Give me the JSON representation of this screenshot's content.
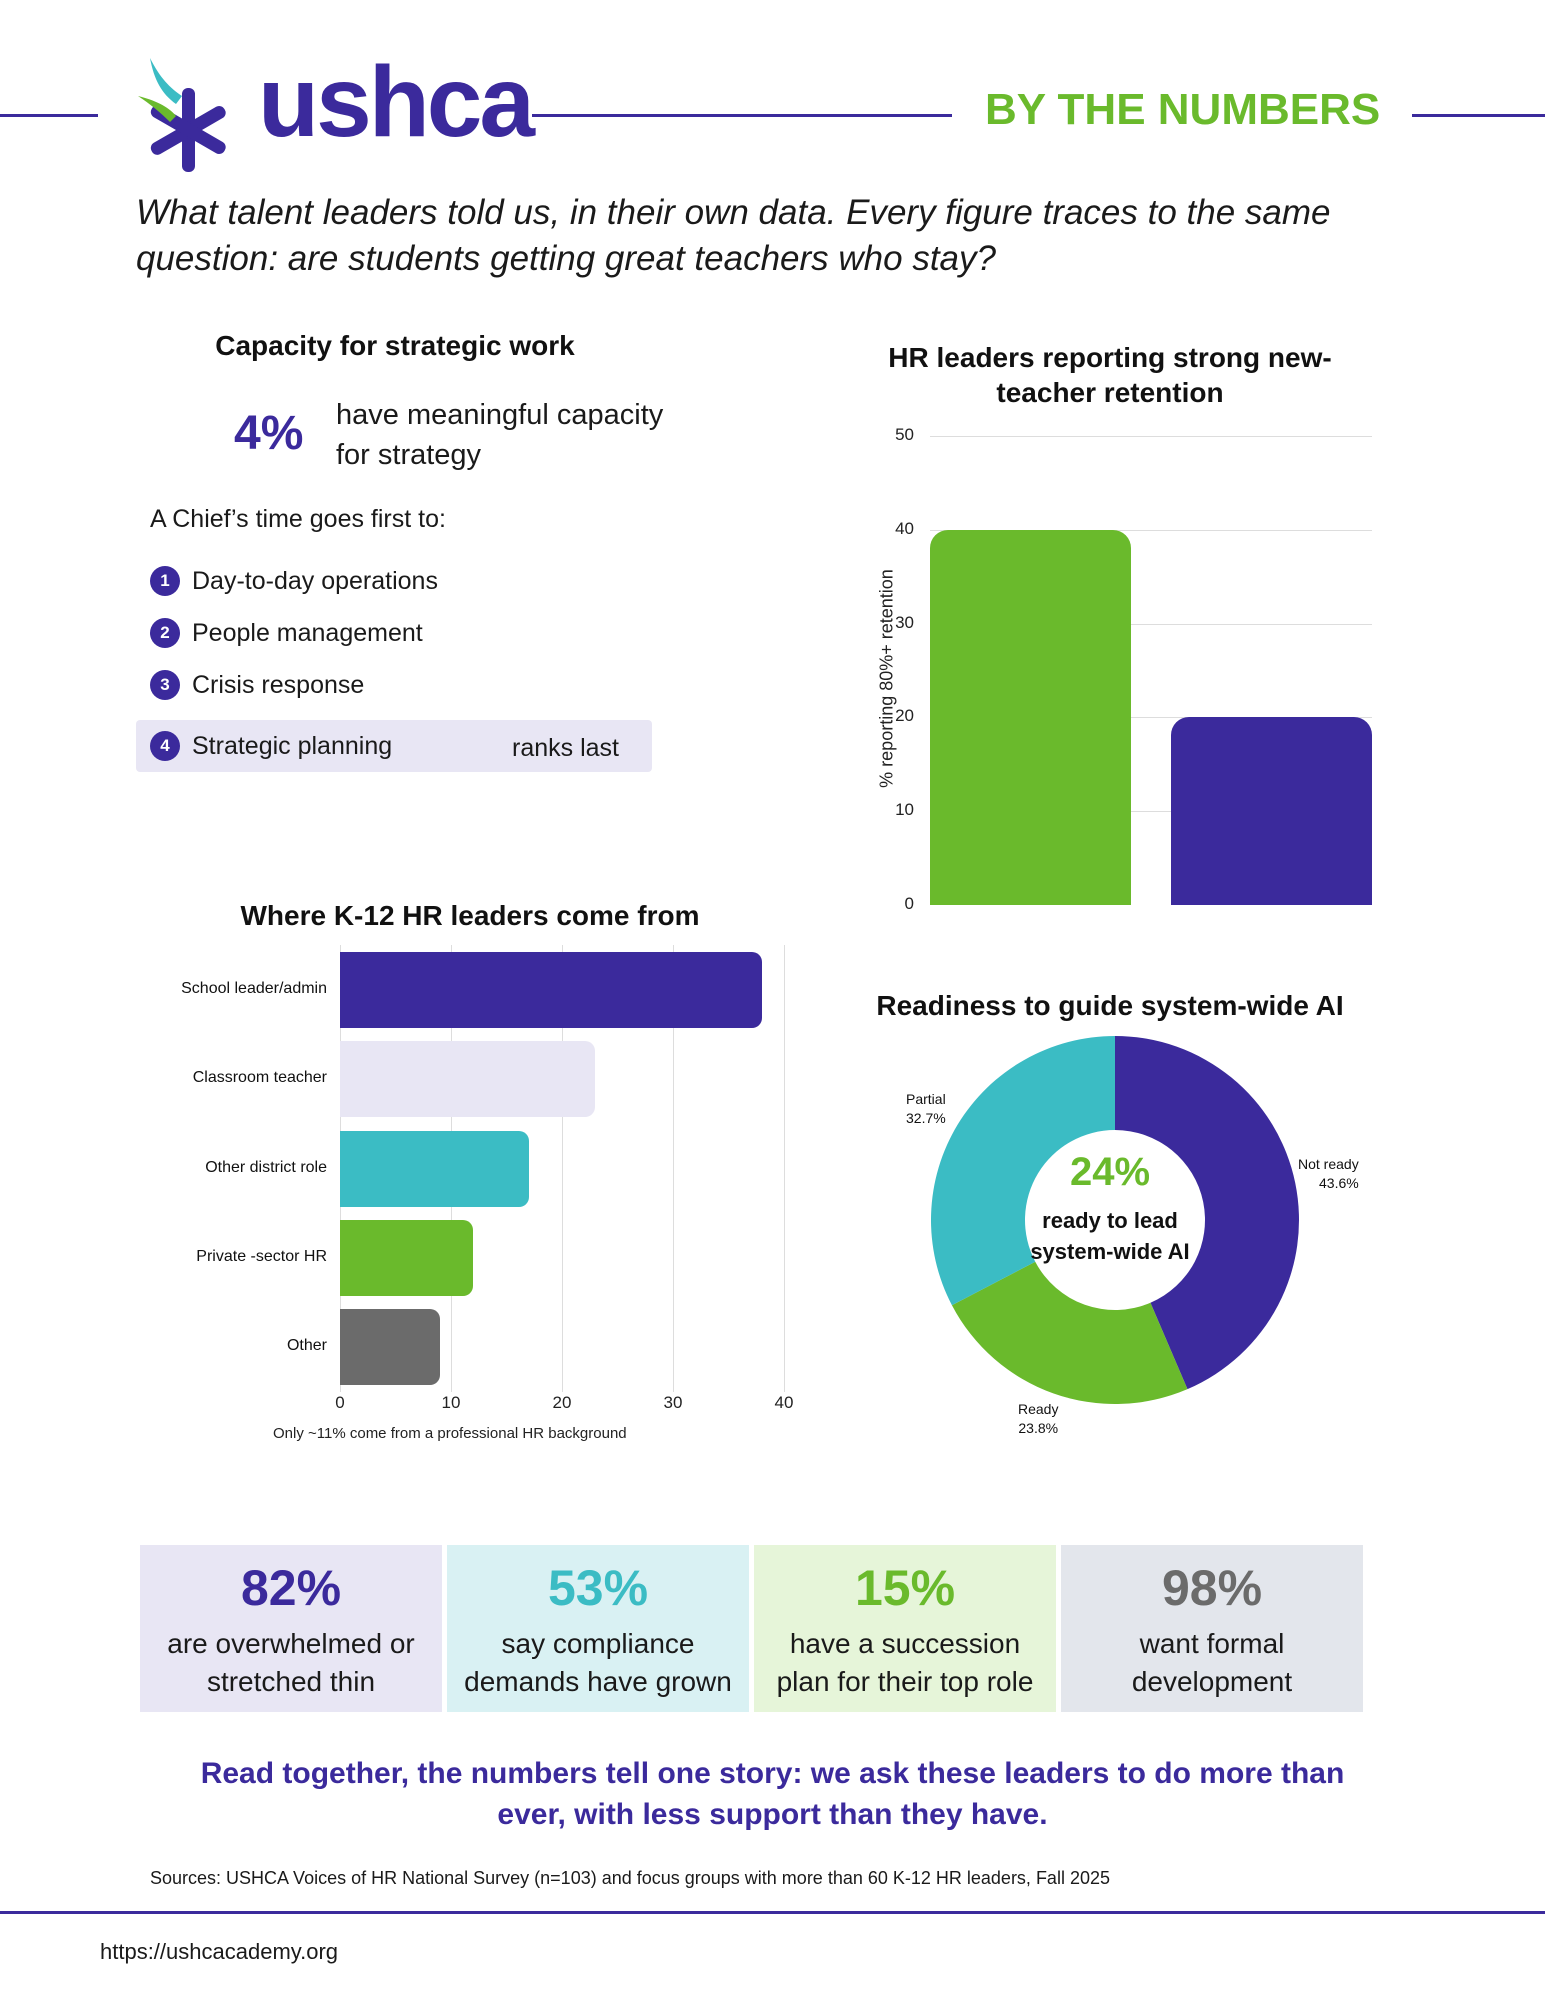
{
  "header": {
    "brand": "ushca",
    "tagline": "BY THE NUMBERS",
    "intro": "What talent leaders told us, in their own data. Every figure traces to the same question: are students getting great teachers who stay?"
  },
  "capacity": {
    "title": "Capacity for strategic work",
    "stat": "4%",
    "stat_desc": "have meaningful capacity for strategy",
    "chief_intro": "A Chief’s time goes first to:",
    "ranks": [
      {
        "num": "1",
        "label": "Day-to-day operations"
      },
      {
        "num": "2",
        "label": "People management"
      },
      {
        "num": "3",
        "label": "Crisis response"
      },
      {
        "num": "4",
        "label": "Strategic planning"
      }
    ],
    "last_note": "ranks last"
  },
  "chart_data": [
    {
      "type": "bar",
      "title": "HR leaders reporting strong new-teacher retention",
      "title_lines": [
        "HR leaders reporting strong new-",
        "teacher retention"
      ],
      "ylabel": "% reporting 80%+ retention",
      "ylim": [
        0,
        50
      ],
      "yticks": [
        "0",
        "10",
        "20",
        "30",
        "40",
        "50"
      ],
      "categories": [
        "",
        ""
      ],
      "values": [
        40,
        20
      ],
      "colors": [
        "#6aba2c",
        "#3b2a9c"
      ],
      "grid": true
    },
    {
      "type": "bar",
      "orientation": "horizontal",
      "title": "Where K-12 HR leaders come from",
      "categories": [
        "School leader/admin",
        "Classroom teacher",
        "Other district role",
        "Private -sector HR",
        "Other"
      ],
      "values": [
        38,
        23,
        17,
        12,
        9
      ],
      "colors": [
        "#3b2a9c",
        "#e8e6f4",
        "#3bbcc4",
        "#6aba2c",
        "#6b6b6b"
      ],
      "xlim": [
        0,
        40
      ],
      "xticks": [
        "0",
        "10",
        "20",
        "30",
        "40"
      ],
      "footnote": "Only ~11% come from a professional HR background",
      "grid": true
    },
    {
      "type": "pie",
      "donut": true,
      "title": "Readiness to guide system-wide AI",
      "slices": [
        {
          "name": "Not ready",
          "label": "43.6%",
          "value": 43.6,
          "color": "#3b2a9c"
        },
        {
          "name": "Ready",
          "label": "23.8%",
          "value": 23.8,
          "color": "#6aba2c"
        },
        {
          "name": "Partial",
          "label": "32.7%",
          "value": 32.7,
          "color": "#3bbcc4"
        }
      ],
      "center_value": "24%",
      "center_text": "ready to lead system-wide AI"
    }
  ],
  "stats": [
    {
      "pct": "82%",
      "desc": "are overwhelmed or stretched thin",
      "color": "#3b2a9c",
      "bg": "#e8e6f4"
    },
    {
      "pct": "53%",
      "desc": "say compliance demands have grown",
      "color": "#3bbcc4",
      "bg": "#d9f1f3"
    },
    {
      "pct": "15%",
      "desc": "have a succession plan for their top role",
      "color": "#6aba2c",
      "bg": "#e6f5d9"
    },
    {
      "pct": "98%",
      "desc": "want formal development",
      "color": "#6b6b6b",
      "bg": "#e3e6ec"
    }
  ],
  "closing": "Read together, the numbers tell one story: we ask these leaders to do more than ever, with less support than they have.",
  "sources": "Sources: USHCA Voices of HR National Survey (n=103) and focus groups with more than 60 K-12 HR leaders, Fall 2025",
  "url": "https://ushcacademy.org"
}
